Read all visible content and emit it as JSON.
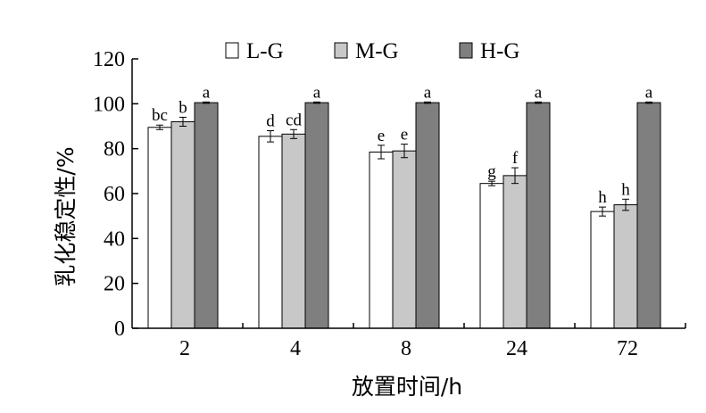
{
  "chart_data": {
    "type": "bar",
    "title": "",
    "xlabel": "放置时间/h",
    "ylabel": "乳化稳定性/%",
    "ylim": [
      0,
      120
    ],
    "yticks": [
      0,
      20,
      40,
      60,
      80,
      100,
      120
    ],
    "categories": [
      "2",
      "4",
      "8",
      "24",
      "72"
    ],
    "legend_position": "top",
    "grid": false,
    "series": [
      {
        "name": "L-G",
        "color": "#ffffff",
        "values": [
          89.5,
          85.5,
          78.5,
          64.5,
          52
        ],
        "errors": [
          1,
          2.5,
          3,
          1,
          2
        ],
        "labels": [
          "bc",
          "d",
          "e",
          "g",
          "h"
        ]
      },
      {
        "name": "M-G",
        "color": "#c8c8c8",
        "values": [
          92,
          86.5,
          79,
          68,
          55
        ],
        "errors": [
          2,
          2,
          3,
          3.5,
          2.5
        ],
        "labels": [
          "b",
          "cd",
          "e",
          "f",
          "h"
        ]
      },
      {
        "name": "H-G",
        "color": "#7f7f7f",
        "values": [
          100.5,
          100.5,
          100.5,
          100.5,
          100.5
        ],
        "errors": [
          0.3,
          0.3,
          0.3,
          0.3,
          0.3
        ],
        "labels": [
          "a",
          "a",
          "a",
          "a",
          "a"
        ]
      }
    ]
  }
}
